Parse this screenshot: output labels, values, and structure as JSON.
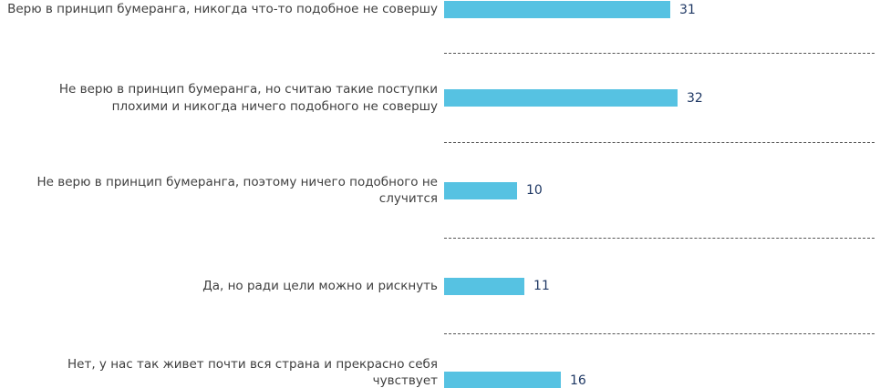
{
  "chart_data": {
    "type": "bar",
    "orientation": "horizontal",
    "title": "",
    "xlabel": "",
    "ylabel": "",
    "xlim": [
      0,
      60
    ],
    "grid": "dashed horizontal separators between rows",
    "legend_position": "none",
    "bar_color": "#56c2e2",
    "value_label_color": "#1f3864",
    "category_label_color": "#3f3f3f",
    "categories": [
      "Верю в принцип бумеранга, никогда что-то подобное не совершу",
      "Не верю в принцип бумеранга, но считаю такие поступки плохими и никогда ничего подобного не совершу",
      "Не верю в принцип бумеранга, поэтому ничего подобного не случится",
      "Да, но ради цели можно и рискнуть",
      "Нет, у нас так живет почти вся страна и прекрасно себя чувствует"
    ],
    "values": [
      31,
      32,
      10,
      11,
      16
    ]
  }
}
